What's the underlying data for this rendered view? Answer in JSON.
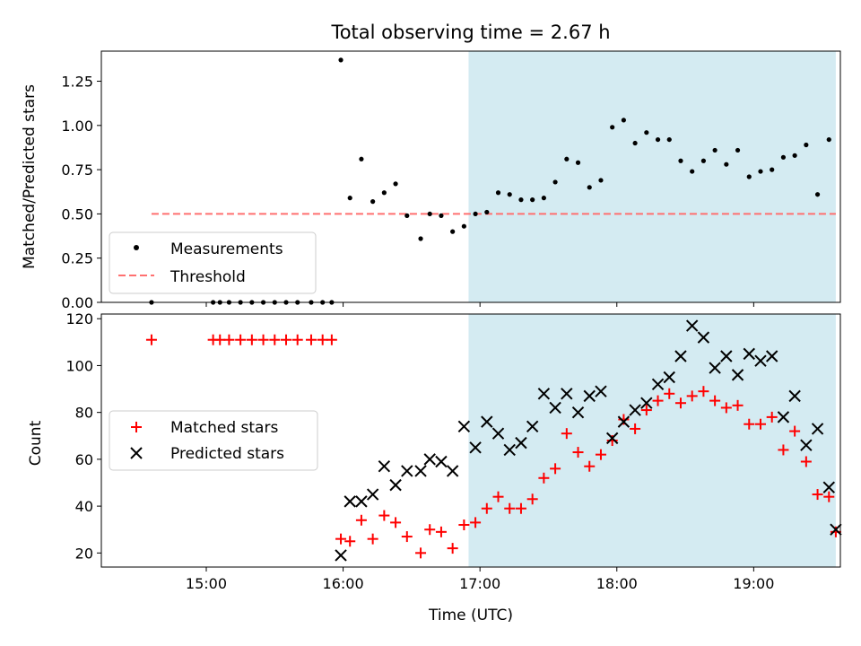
{
  "title": "Total observing time = 2.67 h",
  "colors": {
    "shade": "#add8e6",
    "measurement": "#000000",
    "threshold": "#ff7070",
    "matched": "#ff0000",
    "predicted": "#000000"
  },
  "chart_data": [
    {
      "type": "scatter",
      "ylabel": "Matched/Predicted stars",
      "ylim": [
        0,
        1.42
      ],
      "yticks": [
        0,
        0.25,
        0.5,
        0.75,
        1.0,
        1.25
      ],
      "ytick_labels": [
        "0.00",
        "0.25",
        "0.50",
        "0.75",
        "1.00",
        "1.25"
      ],
      "legend": {
        "placement": "lower-left"
      },
      "shaded_x_range": [
        "16:55",
        "19:36"
      ],
      "threshold": {
        "name": "Threshold",
        "y": 0.5,
        "x_range": [
          "14:36",
          "19:36"
        ]
      },
      "series": [
        {
          "name": "Measurements",
          "marker": "dot",
          "x": [
            "14:36",
            "15:03",
            "15:06",
            "15:10",
            "15:15",
            "15:20",
            "15:25",
            "15:30",
            "15:35",
            "15:40",
            "15:46",
            "15:51",
            "15:55",
            "15:59",
            "16:03",
            "16:08",
            "16:13",
            "16:18",
            "16:23",
            "16:28",
            "16:34",
            "16:38",
            "16:43",
            "16:48",
            "16:53",
            "16:58",
            "17:03",
            "17:08",
            "17:13",
            "17:18",
            "17:23",
            "17:28",
            "17:33",
            "17:38",
            "17:43",
            "17:48",
            "17:53",
            "17:58",
            "18:03",
            "18:08",
            "18:13",
            "18:18",
            "18:23",
            "18:28",
            "18:33",
            "18:38",
            "18:43",
            "18:48",
            "18:53",
            "18:58",
            "19:03",
            "19:08",
            "19:13",
            "19:18",
            "19:23",
            "19:28",
            "19:33"
          ],
          "y": [
            0,
            0,
            0,
            0,
            0,
            0,
            0,
            0,
            0,
            0,
            0,
            0,
            0,
            1.37,
            0.59,
            0.81,
            0.57,
            0.62,
            0.67,
            0.49,
            0.36,
            0.5,
            0.49,
            0.4,
            0.43,
            0.5,
            0.51,
            0.62,
            0.61,
            0.58,
            0.58,
            0.59,
            0.68,
            0.81,
            0.79,
            0.65,
            0.69,
            0.99,
            1.03,
            0.9,
            0.96,
            0.92,
            0.92,
            0.8,
            0.74,
            0.8,
            0.86,
            0.78,
            0.86,
            0.71,
            0.74,
            0.75,
            0.82,
            0.83,
            0.89,
            0.61,
            0.92
          ]
        }
      ]
    },
    {
      "type": "scatter",
      "xlabel": "Time (UTC)",
      "ylabel": "Count",
      "ylim": [
        14,
        122
      ],
      "yticks": [
        20,
        40,
        60,
        80,
        100,
        120
      ],
      "ytick_labels": [
        "20",
        "40",
        "60",
        "80",
        "100",
        "120"
      ],
      "xlim": [
        "14:14",
        "19:38"
      ],
      "xticks": [
        "15:00",
        "16:00",
        "17:00",
        "18:00",
        "19:00"
      ],
      "legend": {
        "placement": "center-left"
      },
      "shaded_x_range": [
        "16:55",
        "19:36"
      ],
      "series": [
        {
          "name": "Matched stars",
          "marker": "plus",
          "x": [
            "14:36",
            "15:03",
            "15:06",
            "15:10",
            "15:15",
            "15:20",
            "15:25",
            "15:30",
            "15:35",
            "15:40",
            "15:46",
            "15:51",
            "15:55",
            "15:59",
            "16:03",
            "16:08",
            "16:13",
            "16:18",
            "16:23",
            "16:28",
            "16:34",
            "16:38",
            "16:43",
            "16:48",
            "16:53",
            "16:58",
            "17:03",
            "17:08",
            "17:13",
            "17:18",
            "17:23",
            "17:28",
            "17:33",
            "17:38",
            "17:43",
            "17:48",
            "17:53",
            "17:58",
            "18:03",
            "18:08",
            "18:13",
            "18:18",
            "18:23",
            "18:28",
            "18:33",
            "18:38",
            "18:43",
            "18:48",
            "18:53",
            "18:58",
            "19:03",
            "19:08",
            "19:13",
            "19:18",
            "19:23",
            "19:28",
            "19:33"
          ],
          "y": [
            111,
            111,
            111,
            111,
            111,
            111,
            111,
            111,
            111,
            111,
            111,
            111,
            111,
            26,
            25,
            34,
            26,
            36,
            33,
            27,
            20,
            30,
            29,
            22,
            32,
            33,
            39,
            44,
            39,
            39,
            43,
            52,
            56,
            71,
            63,
            57,
            62,
            68,
            77,
            73,
            81,
            85,
            88,
            84,
            87,
            89,
            85,
            82,
            83,
            75,
            75,
            78,
            64,
            72,
            59,
            45,
            44
          ]
        },
        {
          "name": "Predicted stars",
          "marker": "x",
          "x": [
            "15:59",
            "16:03",
            "16:08",
            "16:13",
            "16:18",
            "16:23",
            "16:28",
            "16:34",
            "16:38",
            "16:43",
            "16:48",
            "16:53",
            "16:58",
            "17:03",
            "17:08",
            "17:13",
            "17:18",
            "17:23",
            "17:28",
            "17:33",
            "17:38",
            "17:43",
            "17:48",
            "17:53",
            "17:58",
            "18:03",
            "18:08",
            "18:13",
            "18:18",
            "18:23",
            "18:28",
            "18:33",
            "18:38",
            "18:43",
            "18:48",
            "18:53",
            "18:58",
            "19:03",
            "19:08",
            "19:13",
            "19:18",
            "19:23",
            "19:28",
            "19:33",
            "19:36"
          ],
          "y": [
            19,
            42,
            42,
            45,
            57,
            49,
            55,
            55,
            60,
            59,
            55,
            74,
            65,
            76,
            71,
            64,
            67,
            74,
            88,
            82,
            88,
            80,
            87,
            89,
            69,
            76,
            81,
            84,
            92,
            95,
            104,
            117,
            112,
            99,
            104,
            96,
            105,
            102,
            104,
            78,
            87,
            66,
            73,
            48,
            30
          ]
        }
      ],
      "extra_points": [
        {
          "series": "Matched stars",
          "x": "19:36",
          "y": 29
        }
      ]
    }
  ]
}
